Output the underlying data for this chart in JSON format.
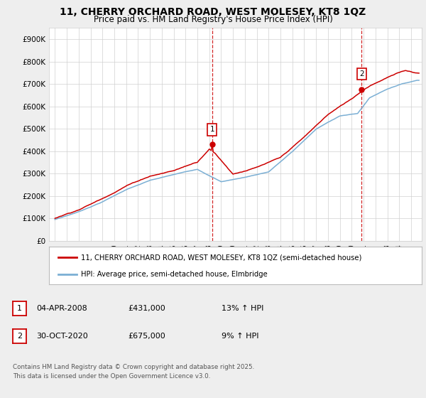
{
  "title": "11, CHERRY ORCHARD ROAD, WEST MOLESEY, KT8 1QZ",
  "subtitle": "Price paid vs. HM Land Registry's House Price Index (HPI)",
  "legend_line1": "11, CHERRY ORCHARD ROAD, WEST MOLESEY, KT8 1QZ (semi-detached house)",
  "legend_line2": "HPI: Average price, semi-detached house, Elmbridge",
  "annotation1_date": "04-APR-2008",
  "annotation1_price": "£431,000",
  "annotation1_hpi": "13% ↑ HPI",
  "annotation2_date": "30-OCT-2020",
  "annotation2_price": "£675,000",
  "annotation2_hpi": "9% ↑ HPI",
  "footer": "Contains HM Land Registry data © Crown copyright and database right 2025.\nThis data is licensed under the Open Government Licence v3.0.",
  "price_color": "#cc0000",
  "hpi_color": "#7bafd4",
  "background_color": "#eeeeee",
  "plot_background": "#ffffff",
  "ylim": [
    0,
    950000
  ],
  "yticks": [
    0,
    100000,
    200000,
    300000,
    400000,
    500000,
    600000,
    700000,
    800000,
    900000
  ],
  "sale1_x": 2008.25,
  "sale1_y": 431000,
  "sale2_x": 2020.83,
  "sale2_y": 675000,
  "xmin": 1995.0,
  "xmax": 2025.9
}
